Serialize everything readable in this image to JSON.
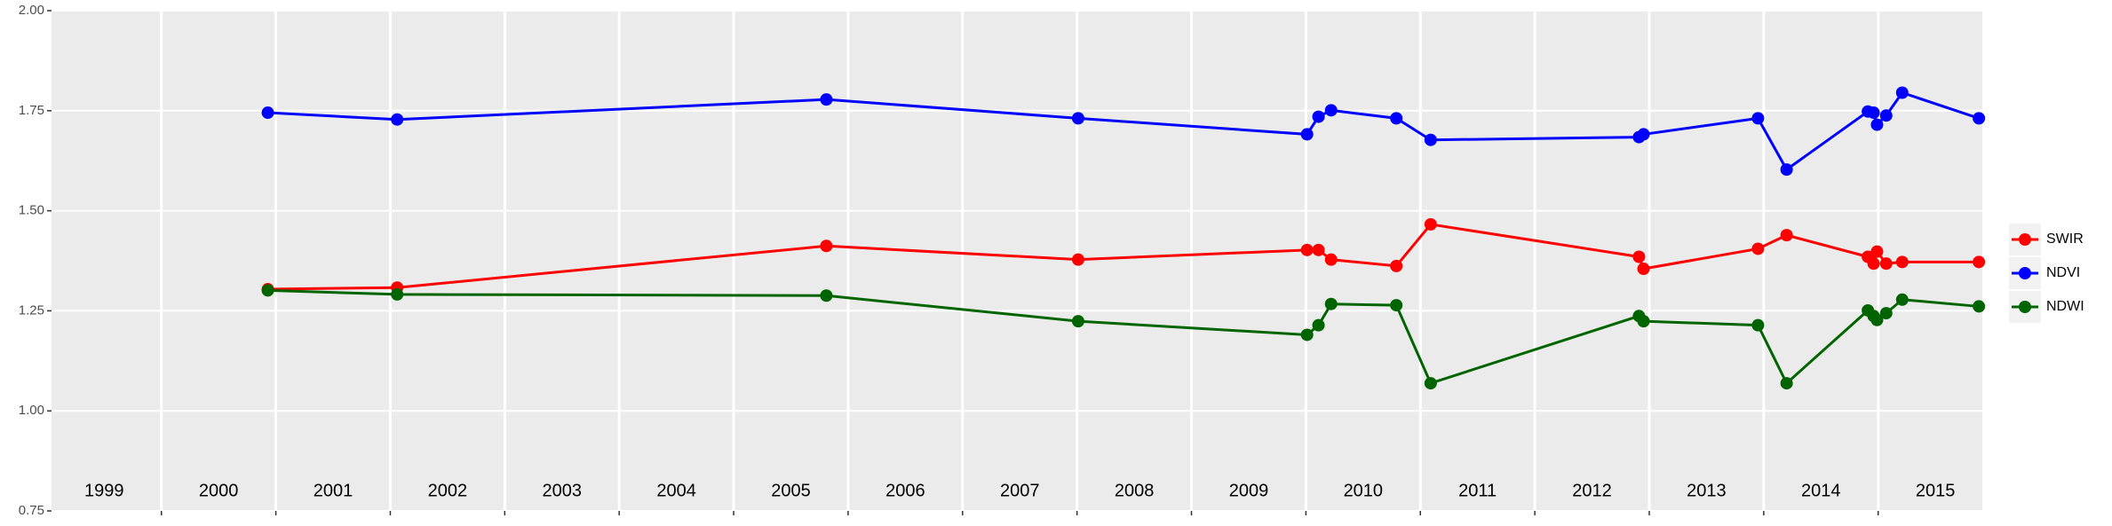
{
  "chart_data": {
    "type": "line",
    "x": [
      2000.93,
      2002.06,
      2005.81,
      2008.01,
      2010.01,
      2010.11,
      2010.22,
      2010.79,
      2011.09,
      2012.91,
      2012.95,
      2013.95,
      2014.2,
      2014.91,
      2014.96,
      2014.99,
      2015.07,
      2015.21,
      2015.88
    ],
    "series": [
      {
        "name": "SWIR",
        "color": "#ff0000",
        "values": [
          1.304,
          1.308,
          1.412,
          1.378,
          1.402,
          1.402,
          1.378,
          1.362,
          1.466,
          1.385,
          1.355,
          1.405,
          1.439,
          1.385,
          1.368,
          1.398,
          1.368,
          1.372,
          1.372
        ]
      },
      {
        "name": "NDVI",
        "color": "#0000ff",
        "values": [
          1.745,
          1.728,
          1.778,
          1.731,
          1.691,
          1.735,
          1.751,
          1.731,
          1.677,
          1.684,
          1.691,
          1.731,
          1.603,
          1.748,
          1.745,
          1.715,
          1.738,
          1.795,
          1.731
        ]
      },
      {
        "name": "NDWI",
        "color": "#006400",
        "values": [
          1.301,
          1.291,
          1.288,
          1.224,
          1.19,
          1.214,
          1.267,
          1.264,
          1.069,
          1.237,
          1.224,
          1.214,
          1.069,
          1.251,
          1.237,
          1.227,
          1.244,
          1.278,
          1.261
        ]
      }
    ],
    "xlim": [
      1999.04,
      2015.91
    ],
    "xticks": [
      2000,
      2001,
      2002,
      2003,
      2004,
      2005,
      2006,
      2007,
      2008,
      2009,
      2010,
      2011,
      2012,
      2013,
      2014,
      2015
    ],
    "year_labels": [
      {
        "value": 1999.5,
        "label": "1999"
      },
      {
        "value": 2000.5,
        "label": "2000"
      },
      {
        "value": 2001.5,
        "label": "2001"
      },
      {
        "value": 2002.5,
        "label": "2002"
      },
      {
        "value": 2003.5,
        "label": "2003"
      },
      {
        "value": 2004.5,
        "label": "2004"
      },
      {
        "value": 2005.5,
        "label": "2005"
      },
      {
        "value": 2006.5,
        "label": "2006"
      },
      {
        "value": 2007.5,
        "label": "2007"
      },
      {
        "value": 2008.5,
        "label": "2008"
      },
      {
        "value": 2009.5,
        "label": "2009"
      },
      {
        "value": 2010.5,
        "label": "2010"
      },
      {
        "value": 2011.5,
        "label": "2011"
      },
      {
        "value": 2012.5,
        "label": "2012"
      },
      {
        "value": 2013.5,
        "label": "2013"
      },
      {
        "value": 2014.5,
        "label": "2014"
      },
      {
        "value": 2015.5,
        "label": "2015"
      }
    ],
    "ylim": [
      0.75,
      2.0
    ],
    "yticks": [
      {
        "value": 0.75,
        "label": "0.75"
      },
      {
        "value": 1.0,
        "label": "1.00"
      },
      {
        "value": 1.25,
        "label": "1.25"
      },
      {
        "value": 1.5,
        "label": "1.50"
      },
      {
        "value": 1.75,
        "label": "1.75"
      },
      {
        "value": 2.0,
        "label": "2.00"
      }
    ],
    "grid": true
  }
}
